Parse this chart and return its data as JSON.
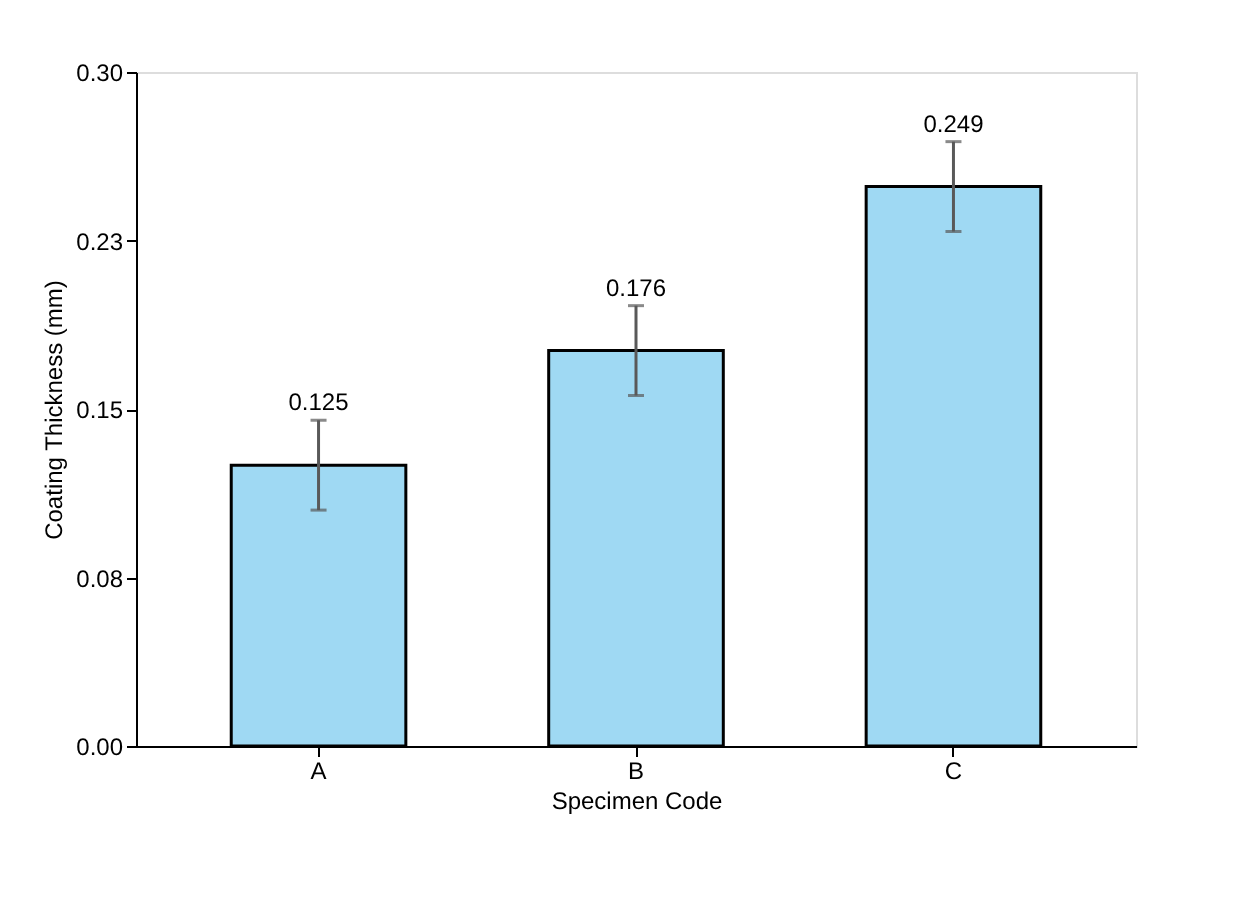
{
  "chart_data": {
    "type": "bar",
    "xlabel": "Specimen Code",
    "ylabel": "Coating Thickness (mm)",
    "categories": [
      "A",
      "B",
      "C"
    ],
    "values": [
      0.125,
      0.176,
      0.249
    ],
    "errors": [
      0.02,
      0.02,
      0.02
    ],
    "color": "#9fd9f3",
    "data_labels": true,
    "ylim": [
      0,
      0.3
    ],
    "yticks": [
      {
        "value": 0,
        "label": "0.00"
      },
      {
        "value": 0.075,
        "label": "0.08"
      },
      {
        "value": 0.15,
        "label": "0.15"
      },
      {
        "value": 0.225,
        "label": "0.23"
      },
      {
        "value": 0.3,
        "label": "0.30"
      }
    ],
    "grid": false
  }
}
